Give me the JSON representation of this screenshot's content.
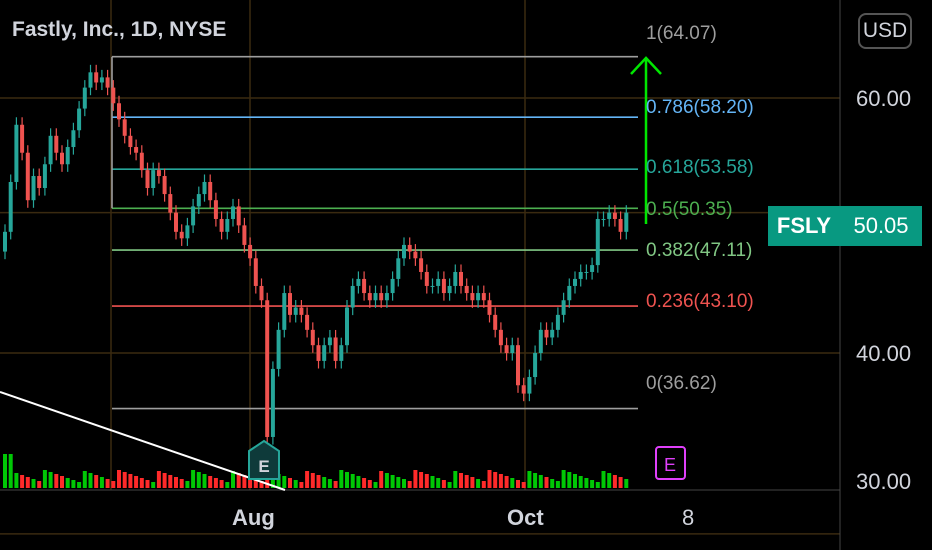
{
  "header": {
    "title": "Fastly, Inc., 1D, NYSE",
    "currency": "USD"
  },
  "price_tag": {
    "ticker": "FSLY",
    "price": "50.05"
  },
  "earnings": {
    "marker1": "E",
    "marker2": "E"
  },
  "axis": {
    "y_labels": [
      "60.00",
      "40.00",
      "30.00"
    ],
    "x_labels": [
      "Aug",
      "Oct",
      "8"
    ]
  },
  "fib_labels": {
    "l100": "1(64.07)",
    "l786": "0.786(58.20)",
    "l618": "0.618(53.58)",
    "l500": "0.5(50.35)",
    "l382": "0.382(47.11)",
    "l236": "0.236(43.10)",
    "l000": "0(36.62)"
  },
  "colors": {
    "up": "#26a69a",
    "down": "#ef5350",
    "vol_up": "#00c805",
    "vol_down": "#ff2a2a",
    "fib_100": "#9e9e9e",
    "fib_786": "#64b5f6",
    "fib_618": "#26a69a",
    "fib_500": "#4caf50",
    "fib_382": "#81c784",
    "fib_236": "#ef5350",
    "fib_000": "#9e9e9e"
  },
  "chart_data": {
    "type": "candlestick",
    "title": "Fastly, Inc., 1D, NYSE",
    "ylim": [
      28,
      66
    ],
    "y_scale": "log",
    "grid": true,
    "fibonacci_retracement": [
      {
        "level": 1,
        "price": 64.07
      },
      {
        "level": 0.786,
        "price": 58.2
      },
      {
        "level": 0.618,
        "price": 53.58
      },
      {
        "level": 0.5,
        "price": 50.35
      },
      {
        "level": 0.382,
        "price": 47.11
      },
      {
        "level": 0.236,
        "price": 43.1
      },
      {
        "level": 0,
        "price": 36.62
      }
    ],
    "last_price": 50.05,
    "closes": [
      48.5,
      52.5,
      57.5,
      55.0,
      51.0,
      53.0,
      52.0,
      54.0,
      56.5,
      55.0,
      54.0,
      55.5,
      57.0,
      59.0,
      61.0,
      62.5,
      61.5,
      62.0,
      61.0,
      59.5,
      58.0,
      56.5,
      55.5,
      55.0,
      53.5,
      52.0,
      53.5,
      53.0,
      51.5,
      50.0,
      48.5,
      48.0,
      49.0,
      50.5,
      51.5,
      52.5,
      51.0,
      49.5,
      48.5,
      49.5,
      50.5,
      49.0,
      47.5,
      46.5,
      44.5,
      43.5,
      35.0,
      39.0,
      41.5,
      44.0,
      42.5,
      43.0,
      42.5,
      41.5,
      40.5,
      39.5,
      40.5,
      41.0,
      39.5,
      40.5,
      43.0,
      44.5,
      45.0,
      44.0,
      43.5,
      44.0,
      43.5,
      44.0,
      45.0,
      46.5,
      47.5,
      47.0,
      46.5,
      45.5,
      44.5,
      44.5,
      45.0,
      44.0,
      44.5,
      45.5,
      44.5,
      44.0,
      43.5,
      44.0,
      43.5,
      42.5,
      41.5,
      40.5,
      40.0,
      40.5,
      38.0,
      37.5,
      38.5,
      40.0,
      41.5,
      41.0,
      41.5,
      42.5,
      43.5,
      44.5,
      45.0,
      45.5,
      45.5,
      46.0,
      49.5,
      49.5,
      50.0,
      49.5,
      48.5,
      50.0
    ]
  }
}
